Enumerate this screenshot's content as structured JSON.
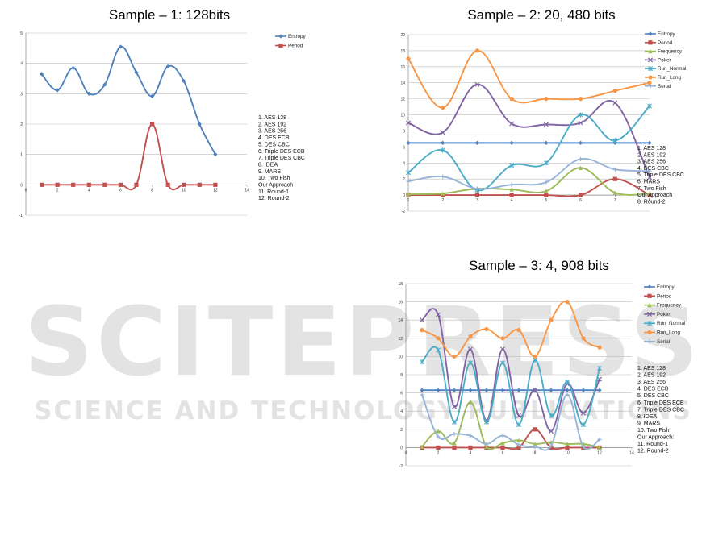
{
  "watermark": {
    "big": "SCITEPRESS",
    "small": "SCIENCE AND TECHNOLOGY PUBLICATIONS",
    "color": "#cfcfcf"
  },
  "chart_data": [
    {
      "type": "line",
      "title": "Sample – 1: 128bits",
      "xlim": [
        0,
        14
      ],
      "ylim": [
        -1,
        5
      ],
      "xticks": [
        0,
        2,
        4,
        6,
        8,
        10,
        12,
        14
      ],
      "yticks": [
        -1,
        0,
        1,
        2,
        3,
        4,
        5
      ],
      "grid": "horizontal",
      "legend_position": "top-right",
      "x": [
        1,
        2,
        3,
        4,
        5,
        6,
        7,
        8,
        9,
        10,
        11,
        12
      ],
      "series": [
        {
          "name": "Entropy",
          "color": "#4f81bd",
          "marker": "diamond",
          "values": [
            3.65,
            3.12,
            3.85,
            3.0,
            3.3,
            4.55,
            3.7,
            2.92,
            3.9,
            3.42,
            2.0,
            1.0
          ]
        },
        {
          "name": "Period",
          "color": "#c0504d",
          "marker": "square",
          "values": [
            0,
            0,
            0,
            0,
            0,
            0,
            0,
            2,
            0,
            0,
            0,
            0
          ]
        }
      ],
      "notes": [
        "1. AES 128",
        "2. AES 192",
        "3. AES 256",
        "4. DES ECB",
        "5. DES CBC",
        "6. Triple DES ECB",
        "7. Triple DES CBC",
        "8. IDEA",
        "9. MARS",
        "10. Two Fish",
        "Our Approach",
        "11. Round-1",
        "12. Round-2"
      ]
    },
    {
      "type": "line",
      "title": "Sample – 2: 20, 480 bits",
      "xlim": [
        1,
        8
      ],
      "ylim": [
        -2,
        20
      ],
      "xticks": [
        1,
        2,
        3,
        4,
        5,
        6,
        7,
        8
      ],
      "yticks": [
        -2,
        0,
        2,
        4,
        6,
        8,
        10,
        12,
        14,
        16,
        18,
        20
      ],
      "grid": "horizontal",
      "legend_position": "top-right",
      "x": [
        1,
        2,
        3,
        4,
        5,
        6,
        7,
        8
      ],
      "series": [
        {
          "name": "Entropy",
          "color": "#4f81bd",
          "marker": "diamond",
          "values": [
            6.5,
            6.5,
            6.5,
            6.5,
            6.5,
            6.5,
            6.5,
            6.5
          ]
        },
        {
          "name": "Period",
          "color": "#c0504d",
          "marker": "square",
          "values": [
            0,
            0,
            0,
            0,
            0,
            0,
            2,
            0
          ]
        },
        {
          "name": "Frequency",
          "color": "#9bbb59",
          "marker": "triangle",
          "values": [
            0.1,
            0.2,
            0.8,
            0.7,
            0.5,
            3.4,
            0.3,
            0.2
          ]
        },
        {
          "name": "Poker",
          "color": "#8064a2",
          "marker": "x",
          "values": [
            9.0,
            7.8,
            13.8,
            8.9,
            8.8,
            9.0,
            11.5,
            2.2
          ]
        },
        {
          "name": "Run_Normal",
          "color": "#4bacc6",
          "marker": "star",
          "values": [
            2.8,
            5.6,
            0.6,
            3.7,
            4.0,
            10.0,
            6.8,
            11.1
          ]
        },
        {
          "name": "Run_Long",
          "color": "#f79646",
          "marker": "circle",
          "values": [
            17.0,
            10.9,
            18.0,
            12.0,
            12.0,
            12.0,
            13.0,
            14.0
          ]
        },
        {
          "name": "Serial",
          "color": "#95b3d7",
          "marker": "plus",
          "values": [
            1.7,
            2.3,
            0.8,
            1.3,
            1.6,
            4.5,
            3.2,
            3.0
          ]
        }
      ],
      "notes": [
        "1. AES 128",
        "2. AES 192",
        "3. AES 256",
        "4. DES CBC",
        "5. Triple DES CBC",
        "6. MARS",
        "7. Two Fish",
        "Our Approach",
        "8. Round-2"
      ]
    },
    {
      "type": "line",
      "title": "Sample – 3: 4, 908 bits",
      "xlim": [
        0,
        14
      ],
      "ylim": [
        -2,
        18
      ],
      "xticks": [
        0,
        2,
        4,
        6,
        8,
        10,
        12,
        14
      ],
      "yticks": [
        -2,
        0,
        2,
        4,
        6,
        8,
        10,
        12,
        14,
        16,
        18
      ],
      "grid": "horizontal",
      "legend_position": "top-right",
      "x": [
        1,
        2,
        3,
        4,
        5,
        6,
        7,
        8,
        9,
        10,
        11,
        12
      ],
      "series": [
        {
          "name": "Entropy",
          "color": "#4f81bd",
          "marker": "diamond",
          "values": [
            6.3,
            6.3,
            6.3,
            6.3,
            6.3,
            6.3,
            6.3,
            6.3,
            6.3,
            6.3,
            6.3,
            6.3
          ]
        },
        {
          "name": "Period",
          "color": "#c0504d",
          "marker": "square",
          "values": [
            0,
            0,
            0,
            0,
            0,
            0,
            0,
            2,
            0,
            0,
            0,
            0
          ]
        },
        {
          "name": "Frequency",
          "color": "#9bbb59",
          "marker": "triangle",
          "values": [
            0.1,
            1.8,
            0.5,
            5.0,
            0.1,
            0.5,
            0.8,
            0.4,
            0.6,
            0.4,
            0.4,
            0.0
          ]
        },
        {
          "name": "Poker",
          "color": "#8064a2",
          "marker": "x",
          "values": [
            14.0,
            14.6,
            4.5,
            10.8,
            3.0,
            10.8,
            3.5,
            6.3,
            1.8,
            7.0,
            3.8,
            7.5
          ]
        },
        {
          "name": "Run_Normal",
          "color": "#4bacc6",
          "marker": "star",
          "values": [
            9.4,
            10.7,
            2.8,
            9.3,
            2.8,
            9.3,
            2.5,
            9.6,
            3.5,
            7.2,
            2.5,
            8.7
          ]
        },
        {
          "name": "Run_Long",
          "color": "#f79646",
          "marker": "circle",
          "values": [
            12.9,
            12.0,
            10.0,
            12.2,
            13.0,
            12.0,
            12.9,
            10.0,
            14.0,
            16.0,
            12.0,
            11.0
          ]
        },
        {
          "name": "Serial",
          "color": "#95b3d7",
          "marker": "plus",
          "values": [
            5.8,
            1.2,
            1.5,
            1.3,
            0.4,
            1.3,
            0.3,
            0.1,
            0.2,
            5.8,
            0.1,
            0.9
          ]
        }
      ],
      "notes": [
        "1. AES 128",
        "2. AES 192",
        "3. AES 256",
        "4. DES ECB",
        "5. DES CBC",
        "6. Triple DES ECB",
        "7. Triple DES CBC",
        "8. IDEA",
        "9. MARS",
        "10. Two Fish",
        "Our Approach:",
        "11. Round-1",
        "12. Round-2"
      ]
    }
  ]
}
